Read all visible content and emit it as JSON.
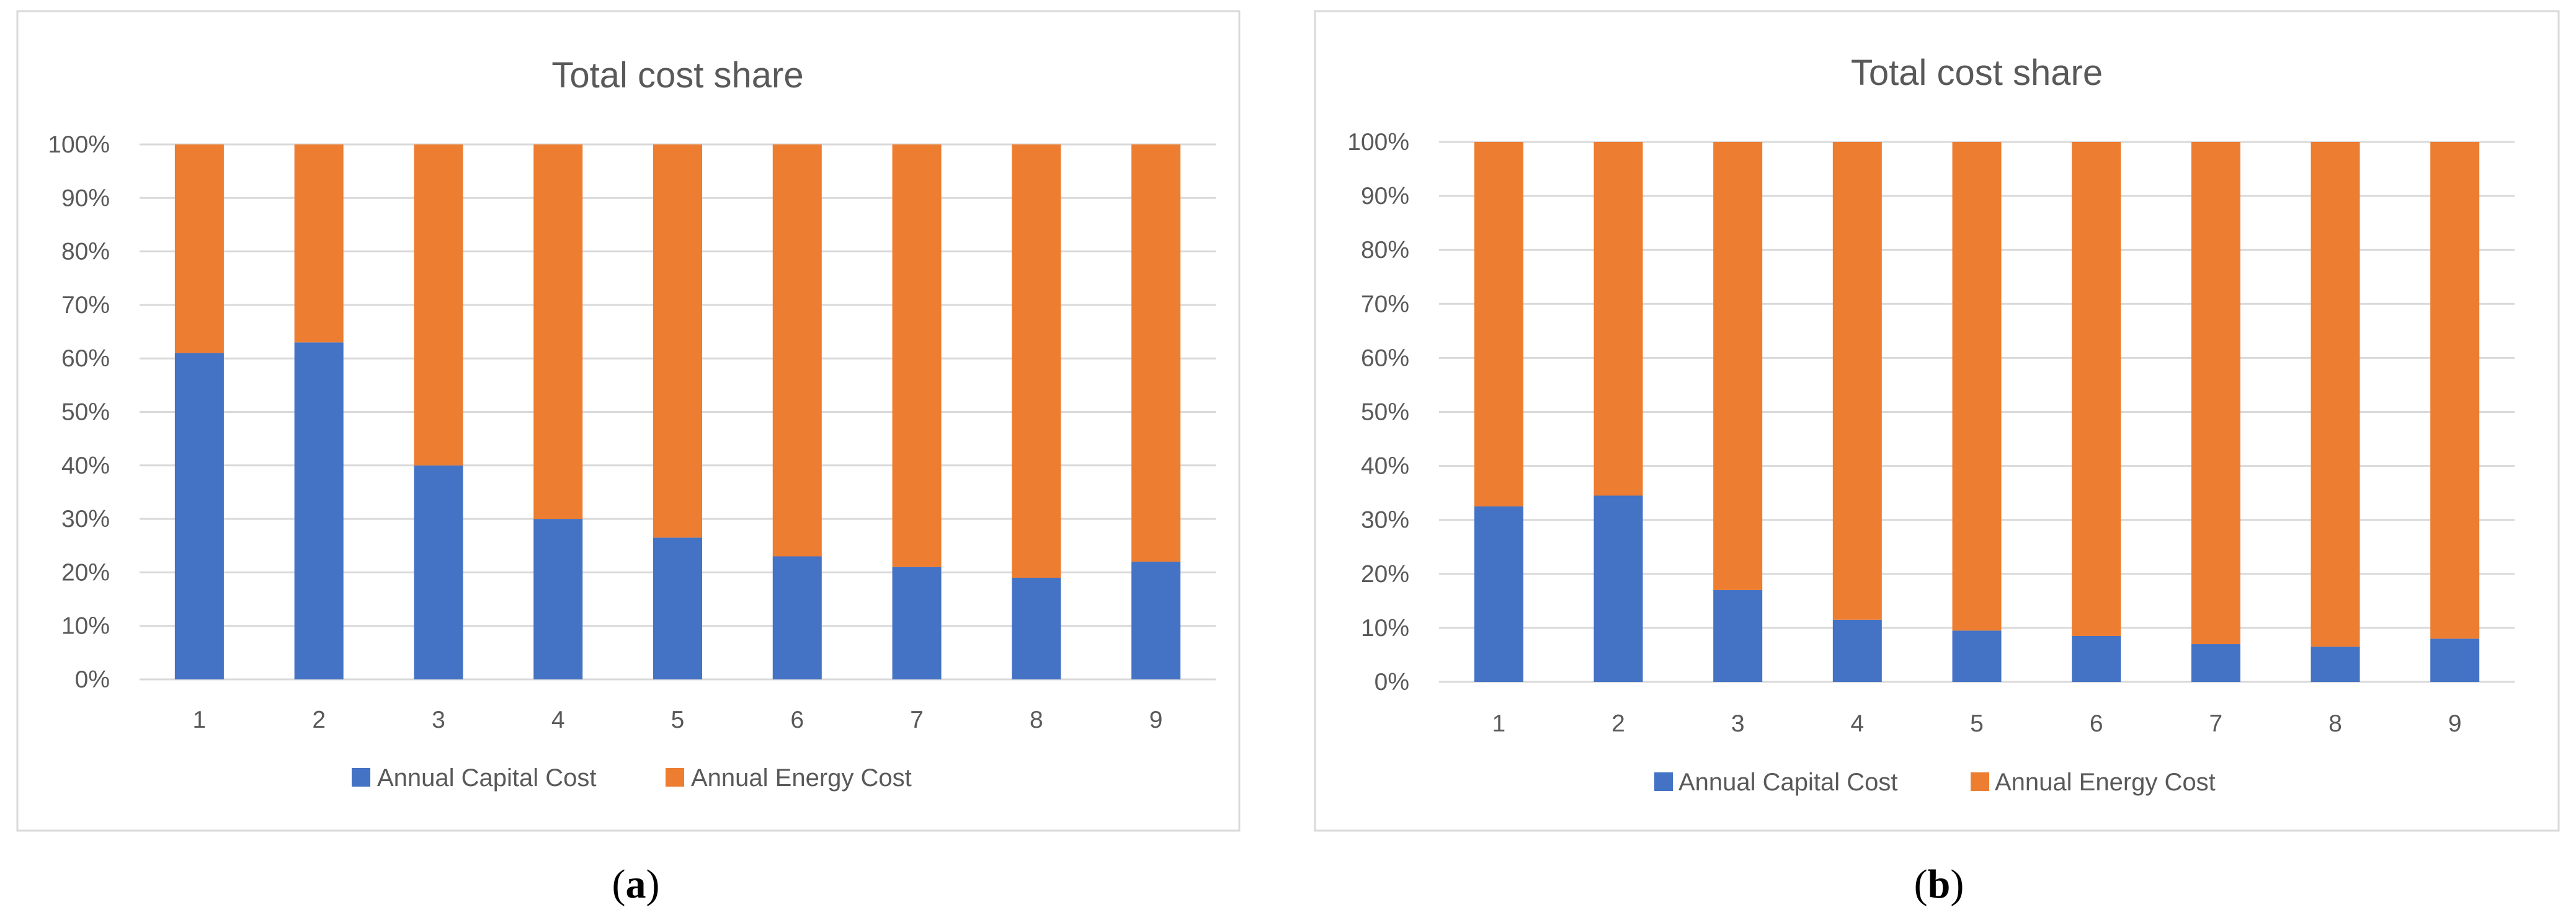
{
  "colors": {
    "capital": "#4472C4",
    "energy": "#ED7D31",
    "grid": "#D9D9D9",
    "frame": "#D9D9D9",
    "text": "#595959"
  },
  "chart_data": [
    {
      "type": "bar",
      "stacked": "percent",
      "title": "Total cost share",
      "caption_letter": "a",
      "categories": [
        "1",
        "2",
        "3",
        "4",
        "5",
        "6",
        "7",
        "8",
        "9"
      ],
      "y_ticks": [
        "0%",
        "10%",
        "20%",
        "30%",
        "40%",
        "50%",
        "60%",
        "70%",
        "80%",
        "90%",
        "100%"
      ],
      "ylim": [
        0,
        100
      ],
      "grid": true,
      "legend_position": "bottom",
      "series": [
        {
          "name": "Annual Capital Cost",
          "color_key": "capital",
          "values": [
            61,
            63,
            40,
            30,
            26.5,
            23,
            21,
            19,
            22
          ]
        },
        {
          "name": "Annual Energy Cost",
          "color_key": "energy",
          "values": [
            39,
            37,
            60,
            70,
            73.5,
            77,
            79,
            81,
            78
          ]
        }
      ]
    },
    {
      "type": "bar",
      "stacked": "percent",
      "title": "Total cost share",
      "caption_letter": "b",
      "categories": [
        "1",
        "2",
        "3",
        "4",
        "5",
        "6",
        "7",
        "8",
        "9"
      ],
      "y_ticks": [
        "0%",
        "10%",
        "20%",
        "30%",
        "40%",
        "50%",
        "60%",
        "70%",
        "80%",
        "90%",
        "100%"
      ],
      "ylim": [
        0,
        100
      ],
      "grid": true,
      "legend_position": "bottom",
      "series": [
        {
          "name": "Annual Capital Cost",
          "color_key": "capital",
          "values": [
            32.5,
            34.5,
            17,
            11.5,
            9.5,
            8.5,
            7,
            6.5,
            8
          ]
        },
        {
          "name": "Annual Energy Cost",
          "color_key": "energy",
          "values": [
            67.5,
            65.5,
            83,
            88.5,
            90.5,
            91.5,
            93,
            93.5,
            92
          ]
        }
      ]
    }
  ]
}
